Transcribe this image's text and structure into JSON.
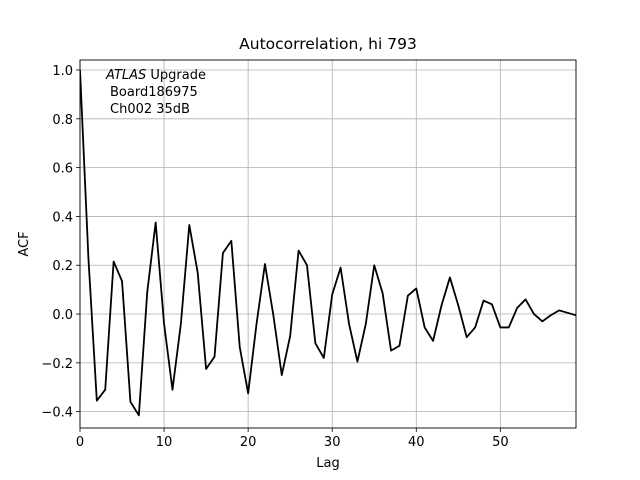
{
  "chart_data": {
    "type": "line",
    "title": "Autocorrelation, hi 793",
    "xlabel": "Lag",
    "ylabel": "ACF",
    "annotation": [
      {
        "italic": "ATLAS",
        "text": " Upgrade"
      },
      "Board186975",
      "Ch002 35dB"
    ],
    "x": [
      0,
      1,
      2,
      3,
      4,
      5,
      6,
      7,
      8,
      9,
      10,
      11,
      12,
      13,
      14,
      15,
      16,
      17,
      18,
      19,
      20,
      21,
      22,
      23,
      24,
      25,
      26,
      27,
      28,
      29,
      30,
      31,
      32,
      33,
      34,
      35,
      36,
      37,
      38,
      39,
      40,
      41,
      42,
      43,
      44,
      45,
      46,
      47,
      48,
      49,
      50,
      51,
      52,
      53,
      54,
      55,
      56,
      57,
      58,
      59
    ],
    "series": [
      {
        "color": "#000000",
        "values": [
          1.0,
          0.23,
          -0.355,
          -0.31,
          0.215,
          0.135,
          -0.36,
          -0.415,
          0.09,
          0.375,
          -0.04,
          -0.31,
          -0.04,
          0.365,
          0.17,
          -0.225,
          -0.175,
          0.25,
          0.3,
          -0.135,
          -0.325,
          -0.04,
          0.205,
          -0.005,
          -0.25,
          -0.09,
          0.26,
          0.2,
          -0.12,
          -0.18,
          0.08,
          0.19,
          -0.04,
          -0.195,
          -0.04,
          0.2,
          0.085,
          -0.15,
          -0.13,
          0.075,
          0.105,
          -0.055,
          -0.11,
          0.035,
          0.15,
          0.035,
          -0.095,
          -0.055,
          0.055,
          0.04,
          -0.055,
          -0.055,
          0.025,
          0.06,
          0.0,
          -0.03,
          -0.005,
          0.015,
          0.005,
          -0.005
        ]
      }
    ],
    "xlim": [
      0,
      59
    ],
    "ylim": [
      -0.467,
      1.041
    ],
    "xticks": [
      0,
      10,
      20,
      30,
      40,
      50
    ],
    "yticks": [
      {
        "value": -0.4,
        "label": "−0.4"
      },
      {
        "value": -0.2,
        "label": "−0.2"
      },
      {
        "value": 0,
        "label": "0.0"
      },
      0.2,
      0.4,
      0.6,
      0.8,
      {
        "value": 1,
        "label": "1.0"
      }
    ],
    "grid": true
  }
}
